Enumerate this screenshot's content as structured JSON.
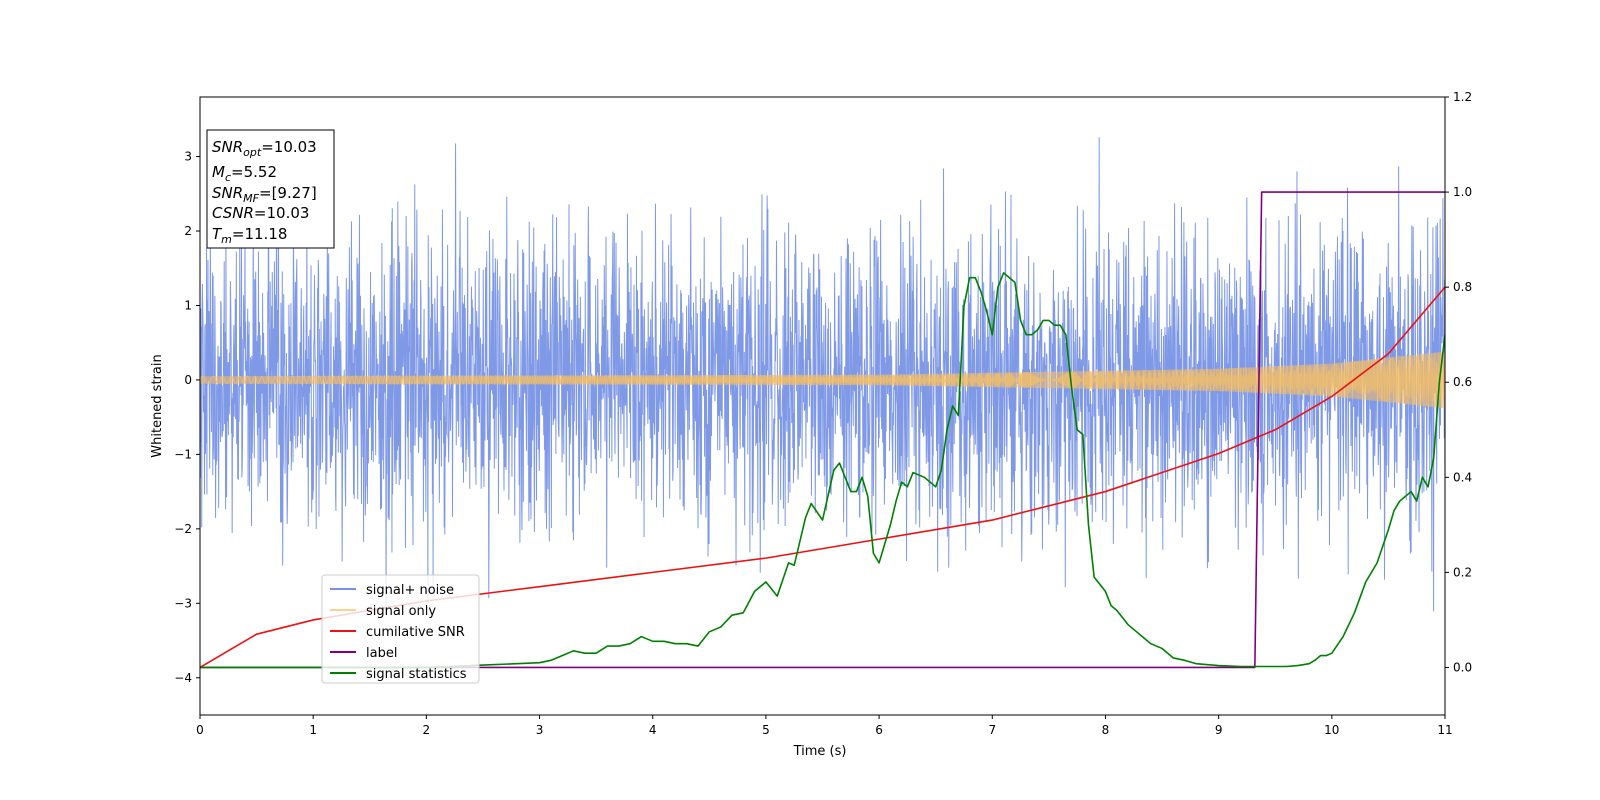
{
  "chart_data": {
    "type": "line",
    "xlabel": "Time (s)",
    "ylabel": "Whitened strain",
    "xlim": [
      0,
      11
    ],
    "ylim": [
      -4.5,
      3.8
    ],
    "y2lim": [
      -0.1,
      1.2
    ],
    "xticks": [
      0,
      1,
      2,
      3,
      4,
      5,
      6,
      7,
      8,
      9,
      10,
      11
    ],
    "yticks": [
      -4,
      -3,
      -2,
      -1,
      0,
      1,
      2,
      3
    ],
    "y2ticks": [
      0.0,
      0.2,
      0.4,
      0.6,
      0.8,
      1.0,
      1.2
    ],
    "legend_position": "lower-left",
    "grid": false,
    "annotation": {
      "snr_opt": "=10.03",
      "mc": "=5.52",
      "snr_mf": "=[9.27]",
      "csnr": "=10.03",
      "tm": "=11.18"
    },
    "series": [
      {
        "name": "signal+ noise",
        "color": "#7893e6",
        "axis": "left",
        "kind": "whitened noise plus chirp, approx. standard deviation 1, peaks near ±3.4"
      },
      {
        "name": "signal only",
        "color": "#f5be65",
        "axis": "left",
        "amplitude_envelope": {
          "x": [
            0,
            6,
            9,
            10,
            11
          ],
          "y": [
            0.05,
            0.07,
            0.15,
            0.22,
            0.38
          ]
        }
      },
      {
        "name": "cumilative SNR",
        "color": "#ee1111",
        "axis": "right",
        "x": [
          0,
          0.5,
          1,
          2,
          3,
          4,
          5,
          6,
          7,
          8,
          9,
          9.5,
          10,
          10.5,
          11
        ],
        "y": [
          0.0,
          0.07,
          0.1,
          0.14,
          0.17,
          0.2,
          0.23,
          0.27,
          0.31,
          0.37,
          0.45,
          0.5,
          0.57,
          0.66,
          0.8
        ]
      },
      {
        "name": "label",
        "color": "#800080",
        "axis": "right",
        "x": [
          0,
          9.32,
          9.38,
          11
        ],
        "y": [
          0,
          0,
          1,
          1
        ]
      },
      {
        "name": "signal statistics",
        "color": "#008000",
        "axis": "right",
        "x": [
          0,
          1,
          2,
          2.5,
          3,
          3.1,
          3.2,
          3.3,
          3.4,
          3.5,
          3.6,
          3.65,
          3.7,
          3.8,
          3.9,
          3.95,
          4.0,
          4.1,
          4.2,
          4.3,
          4.4,
          4.5,
          4.6,
          4.7,
          4.8,
          4.9,
          5.0,
          5.1,
          5.2,
          5.25,
          5.35,
          5.4,
          5.5,
          5.6,
          5.65,
          5.75,
          5.8,
          5.85,
          5.9,
          5.95,
          6.0,
          6.1,
          6.15,
          6.2,
          6.25,
          6.3,
          6.4,
          6.5,
          6.55,
          6.6,
          6.65,
          6.7,
          6.75,
          6.8,
          6.85,
          6.9,
          6.95,
          7.0,
          7.05,
          7.1,
          7.15,
          7.2,
          7.25,
          7.3,
          7.35,
          7.4,
          7.45,
          7.5,
          7.55,
          7.6,
          7.65,
          7.7,
          7.75,
          7.8,
          7.85,
          7.9,
          8.0,
          8.05,
          8.1,
          8.2,
          8.3,
          8.4,
          8.5,
          8.6,
          8.7,
          8.8,
          9.0,
          9.2,
          9.3,
          9.5,
          9.6,
          9.7,
          9.8,
          9.85,
          9.9,
          9.95,
          10.0,
          10.1,
          10.2,
          10.3,
          10.4,
          10.5,
          10.55,
          10.6,
          10.7,
          10.75,
          10.8,
          10.85,
          10.9,
          10.95,
          11.0
        ],
        "y": [
          0.0,
          0.0,
          0.0,
          0.005,
          0.01,
          0.015,
          0.025,
          0.035,
          0.03,
          0.03,
          0.045,
          0.045,
          0.045,
          0.05,
          0.065,
          0.06,
          0.055,
          0.055,
          0.05,
          0.05,
          0.045,
          0.075,
          0.085,
          0.11,
          0.115,
          0.16,
          0.18,
          0.15,
          0.22,
          0.215,
          0.315,
          0.345,
          0.31,
          0.415,
          0.43,
          0.37,
          0.37,
          0.4,
          0.36,
          0.24,
          0.22,
          0.3,
          0.35,
          0.39,
          0.38,
          0.41,
          0.4,
          0.38,
          0.415,
          0.5,
          0.55,
          0.53,
          0.76,
          0.82,
          0.82,
          0.79,
          0.75,
          0.7,
          0.8,
          0.83,
          0.82,
          0.81,
          0.73,
          0.7,
          0.7,
          0.71,
          0.73,
          0.73,
          0.72,
          0.72,
          0.7,
          0.59,
          0.5,
          0.49,
          0.3,
          0.19,
          0.16,
          0.13,
          0.12,
          0.09,
          0.07,
          0.05,
          0.04,
          0.02,
          0.015,
          0.008,
          0.004,
          0.002,
          0.002,
          0.002,
          0.002,
          0.004,
          0.008,
          0.015,
          0.025,
          0.025,
          0.03,
          0.065,
          0.115,
          0.18,
          0.22,
          0.29,
          0.33,
          0.35,
          0.37,
          0.35,
          0.4,
          0.38,
          0.44,
          0.6,
          0.7
        ]
      }
    ]
  }
}
